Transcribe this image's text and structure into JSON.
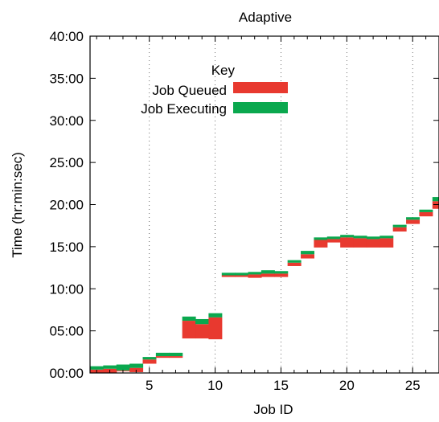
{
  "chart_data": {
    "type": "bar",
    "title": "Adaptive",
    "xlabel": "Job ID",
    "ylabel": "Time (hr:min:sec)",
    "xlim": [
      0.5,
      27.0
    ],
    "ylim": [
      0,
      40
    ],
    "y_unit": "minutes",
    "xticks": [
      5,
      10,
      15,
      20,
      25
    ],
    "yticks": [
      {
        "value": 0,
        "label": "00:00"
      },
      {
        "value": 5,
        "label": "05:00"
      },
      {
        "value": 10,
        "label": "10:00"
      },
      {
        "value": 15,
        "label": "15:00"
      },
      {
        "value": 20,
        "label": "20:00"
      },
      {
        "value": 25,
        "label": "25:00"
      },
      {
        "value": 30,
        "label": "30:00"
      },
      {
        "value": 35,
        "label": "35:00"
      },
      {
        "value": 40,
        "label": "40:00"
      }
    ],
    "legend": {
      "title": "Key",
      "placement": "top-left",
      "entries": [
        {
          "label": "Job Queued",
          "color": "#e8392f"
        },
        {
          "label": "Job Executing",
          "color": "#0aa84e"
        }
      ]
    },
    "colors": {
      "queued": "#e8392f",
      "executing": "#0aa84e"
    },
    "jobs": [
      {
        "id": 1,
        "submit": 0.0,
        "start": 0.4,
        "end": 0.8
      },
      {
        "id": 2,
        "submit": 0.0,
        "start": 0.5,
        "end": 0.9
      },
      {
        "id": 3,
        "submit": 0.2,
        "start": 0.3,
        "end": 1.0
      },
      {
        "id": 4,
        "submit": 0.1,
        "start": 0.6,
        "end": 1.1
      },
      {
        "id": 5,
        "submit": 1.1,
        "start": 1.6,
        "end": 1.9
      },
      {
        "id": 6,
        "submit": 1.8,
        "start": 2.0,
        "end": 2.4
      },
      {
        "id": 7,
        "submit": 1.8,
        "start": 2.0,
        "end": 2.4
      },
      {
        "id": 8,
        "submit": 4.1,
        "start": 6.2,
        "end": 6.7
      },
      {
        "id": 9,
        "submit": 4.1,
        "start": 5.8,
        "end": 6.4
      },
      {
        "id": 10,
        "submit": 4.0,
        "start": 6.6,
        "end": 7.1
      },
      {
        "id": 11,
        "submit": 11.4,
        "start": 11.6,
        "end": 11.9
      },
      {
        "id": 12,
        "submit": 11.4,
        "start": 11.6,
        "end": 11.9
      },
      {
        "id": 13,
        "submit": 11.3,
        "start": 11.7,
        "end": 12.0
      },
      {
        "id": 14,
        "submit": 11.4,
        "start": 11.8,
        "end": 12.2
      },
      {
        "id": 15,
        "submit": 11.4,
        "start": 11.8,
        "end": 12.1
      },
      {
        "id": 16,
        "submit": 12.7,
        "start": 13.1,
        "end": 13.4
      },
      {
        "id": 17,
        "submit": 13.6,
        "start": 14.1,
        "end": 14.5
      },
      {
        "id": 18,
        "submit": 14.9,
        "start": 15.8,
        "end": 16.1
      },
      {
        "id": 19,
        "submit": 15.5,
        "start": 15.9,
        "end": 16.2
      },
      {
        "id": 20,
        "submit": 14.9,
        "start": 16.1,
        "end": 16.4
      },
      {
        "id": 21,
        "submit": 14.9,
        "start": 16.0,
        "end": 16.3
      },
      {
        "id": 22,
        "submit": 14.9,
        "start": 15.9,
        "end": 16.2
      },
      {
        "id": 23,
        "submit": 14.9,
        "start": 16.0,
        "end": 16.3
      },
      {
        "id": 24,
        "submit": 16.8,
        "start": 17.3,
        "end": 17.6
      },
      {
        "id": 25,
        "submit": 17.7,
        "start": 18.2,
        "end": 18.5
      },
      {
        "id": 26,
        "submit": 18.6,
        "start": 19.1,
        "end": 19.4
      },
      {
        "id": 27,
        "submit": 19.5,
        "start": 20.4,
        "end": 20.9
      }
    ]
  }
}
